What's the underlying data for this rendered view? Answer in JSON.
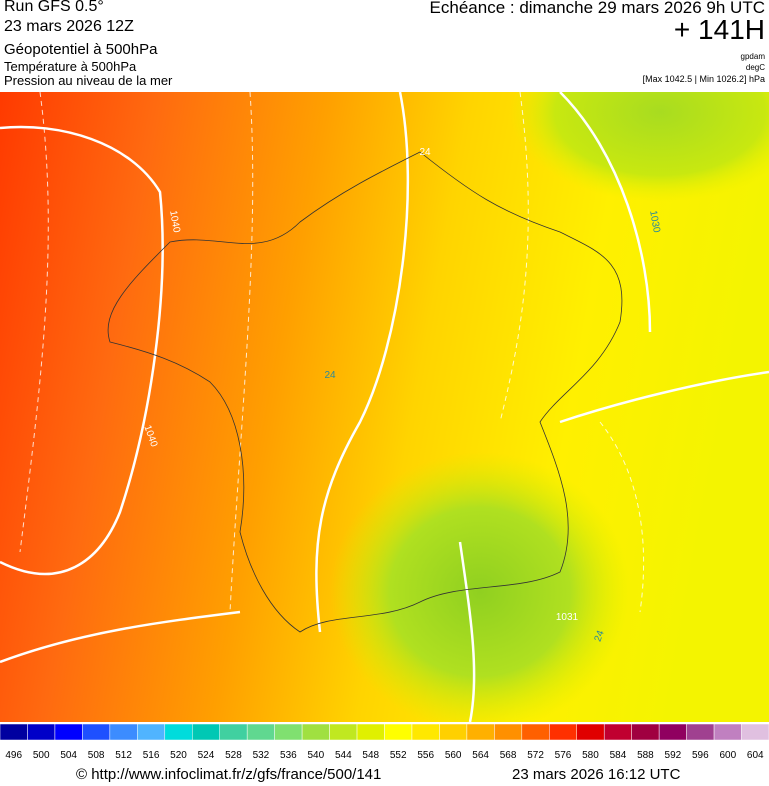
{
  "header": {
    "run": "Run GFS 0.5°",
    "run_date": "23 mars 2026 12Z",
    "field1": "Géopotentiel à 500hPa",
    "field2": "Température à 500hPa",
    "field3": "Pression au niveau de la mer",
    "valid": "Echéance : dimanche 29 mars 2026 9h UTC",
    "lead": "+ 141H",
    "unit1": "gpdam",
    "unit2": "degC",
    "pressure_range": "[Max 1042.5 | Min 1026.2] hPa"
  },
  "map": {
    "contour_labels": [
      "1040",
      "1040",
      "24",
      "24",
      "1030",
      "1031",
      "24"
    ]
  },
  "scale": {
    "values": [
      496,
      500,
      504,
      508,
      512,
      516,
      520,
      524,
      528,
      532,
      536,
      540,
      544,
      548,
      552,
      556,
      560,
      564,
      568,
      572,
      576,
      580,
      584,
      588,
      592,
      596,
      600,
      604
    ],
    "colors": [
      "#0000a0",
      "#0000c8",
      "#0000ff",
      "#1e50ff",
      "#3c8cff",
      "#50b4ff",
      "#00dcdc",
      "#00c8b4",
      "#40d0a0",
      "#60d890",
      "#80e070",
      "#a0e040",
      "#c0e820",
      "#e0f000",
      "#ffff00",
      "#ffe800",
      "#ffd000",
      "#ffb000",
      "#ff9000",
      "#ff6000",
      "#ff3000",
      "#e00000",
      "#c00030",
      "#a00040",
      "#900060",
      "#a04090",
      "#c080c0",
      "#e0c0e0"
    ]
  },
  "footer": {
    "url": "© http://www.infoclimat.fr/z/gfs/france/500/141",
    "generated": "23 mars 2026 16:12 UTC"
  }
}
